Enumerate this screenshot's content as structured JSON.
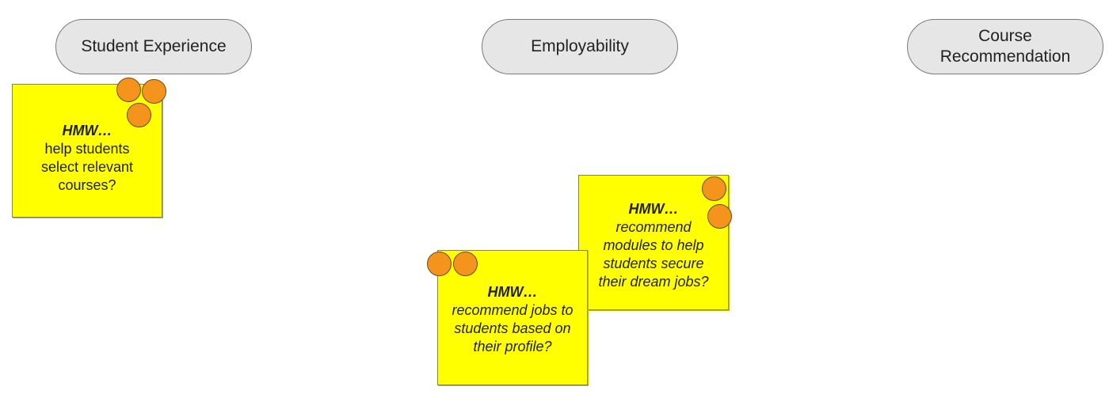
{
  "categories": [
    {
      "label": "Student Experience"
    },
    {
      "label": "Employability"
    },
    {
      "label": "Course\nRecommendation"
    }
  ],
  "notes": [
    {
      "prefix": "HMW…",
      "question": "help students\nselect relevant\ncourses?",
      "votes": 3
    },
    {
      "prefix": "HMW…",
      "question": "recommend\nmodules to help\nstudents secure\ntheir dream jobs?",
      "votes": 2
    },
    {
      "prefix": "HMW…",
      "question": "recommend jobs to\nstudents based on\ntheir profile?",
      "votes": 2
    }
  ],
  "colors": {
    "sticky": "#ffff00",
    "vote_dot": "#f5941d",
    "category_fill": "#e6e6e6"
  }
}
